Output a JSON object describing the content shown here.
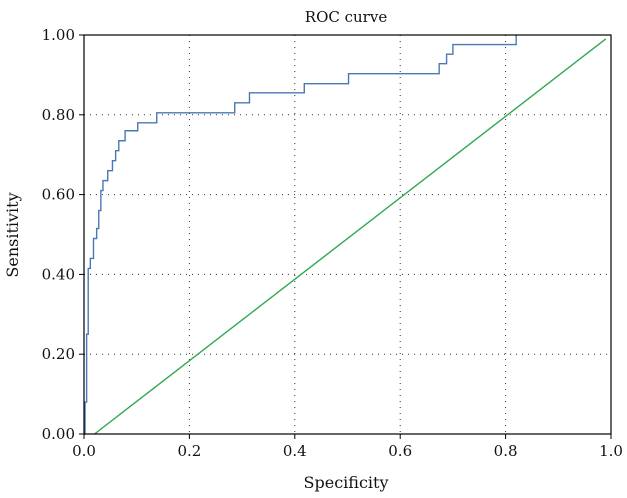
{
  "chart_data": {
    "type": "line",
    "title": "ROC curve",
    "xlabel": "Specificity",
    "ylabel": "Sensitivity",
    "xlim": [
      0,
      1
    ],
    "ylim": [
      0,
      1
    ],
    "grid": true,
    "x_ticks": [
      0.0,
      0.2,
      0.4,
      0.6,
      0.8,
      1.0
    ],
    "x_tick_labels": [
      "0.0",
      "0.2",
      "0.4",
      "0.6",
      "0.8",
      "1.0"
    ],
    "y_ticks": [
      0.0,
      0.2,
      0.4,
      0.6,
      0.8,
      1.0
    ],
    "y_tick_labels": [
      "0.00",
      "0.20",
      "0.40",
      "0.60",
      "0.80",
      "1.00"
    ],
    "colors": {
      "roc": "#4a78b5",
      "reference": "#2fa84f",
      "axis": "#000000",
      "grid": "#333333"
    },
    "series": [
      {
        "style": "step",
        "x": [
          0.0,
          0.002,
          0.002,
          0.005,
          0.005,
          0.008,
          0.008,
          0.012,
          0.012,
          0.018,
          0.018,
          0.024,
          0.024,
          0.028,
          0.028,
          0.032,
          0.032,
          0.036,
          0.036,
          0.045,
          0.045,
          0.054,
          0.054,
          0.06,
          0.06,
          0.066,
          0.066,
          0.078,
          0.078,
          0.084,
          0.084,
          0.102,
          0.102,
          0.138,
          0.138,
          0.286,
          0.286,
          0.314,
          0.314,
          0.418,
          0.418,
          0.502,
          0.502,
          0.674,
          0.674,
          0.688,
          0.688,
          0.7,
          0.7,
          0.82,
          0.82
        ],
        "y": [
          0.0,
          0.0,
          0.08,
          0.08,
          0.25,
          0.25,
          0.415,
          0.415,
          0.44,
          0.44,
          0.49,
          0.49,
          0.515,
          0.515,
          0.56,
          0.56,
          0.61,
          0.61,
          0.635,
          0.635,
          0.66,
          0.66,
          0.685,
          0.685,
          0.71,
          0.71,
          0.735,
          0.735,
          0.76,
          0.76,
          0.76,
          0.76,
          0.78,
          0.78,
          0.805,
          0.805,
          0.83,
          0.83,
          0.855,
          0.855,
          0.878,
          0.878,
          0.903,
          0.903,
          0.928,
          0.928,
          0.952,
          0.952,
          0.976,
          0.976,
          1.0
        ]
      },
      {
        "style": "line",
        "x": [
          0.02,
          0.99
        ],
        "y": [
          0.0,
          0.99
        ]
      }
    ]
  }
}
